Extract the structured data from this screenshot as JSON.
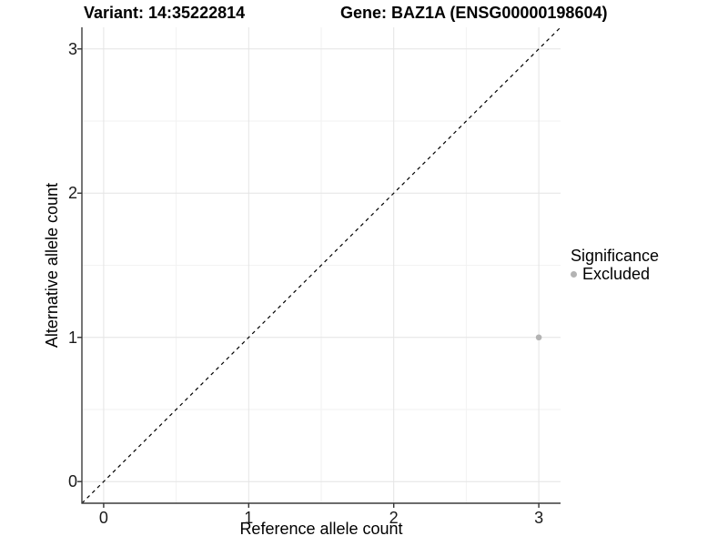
{
  "header": {
    "variant_title": "Variant: 14:35222814",
    "gene_title": "Gene: BAZ1A (ENSG00000198604)"
  },
  "chart_data": {
    "type": "scatter",
    "titles": [
      "Variant: 14:35222814",
      "Gene: BAZ1A (ENSG00000198604)"
    ],
    "xlabel": "Reference allele count",
    "ylabel": "Alternative allele count",
    "xlim": [
      -0.15,
      3.15
    ],
    "ylim": [
      -0.15,
      3.15
    ],
    "x_ticks": [
      0,
      1,
      2,
      3
    ],
    "y_ticks": [
      0,
      1,
      2,
      3
    ],
    "x_minor_ticks": [
      0.5,
      1.5,
      2.5
    ],
    "y_minor_ticks": [
      0.5,
      1.5,
      2.5
    ],
    "grid": true,
    "identity_line": {
      "slope": 1,
      "intercept": 0,
      "style": "dashed",
      "color": "#000000"
    },
    "series": [
      {
        "name": "Excluded",
        "color": "#b3b3b3",
        "points": [
          {
            "x": 3,
            "y": 1
          }
        ]
      }
    ],
    "legend": {
      "title": "Significance",
      "position": "right",
      "entries": [
        {
          "label": "Excluded",
          "color": "#b3b3b3"
        }
      ]
    },
    "colors": {
      "background": "#ffffff",
      "axis_line": "#3c3c3c",
      "tick_mark": "#333333",
      "major_grid": "#e4e4e4",
      "minor_grid": "#f2f2f2",
      "excluded_point": "#b3b3b3"
    }
  }
}
